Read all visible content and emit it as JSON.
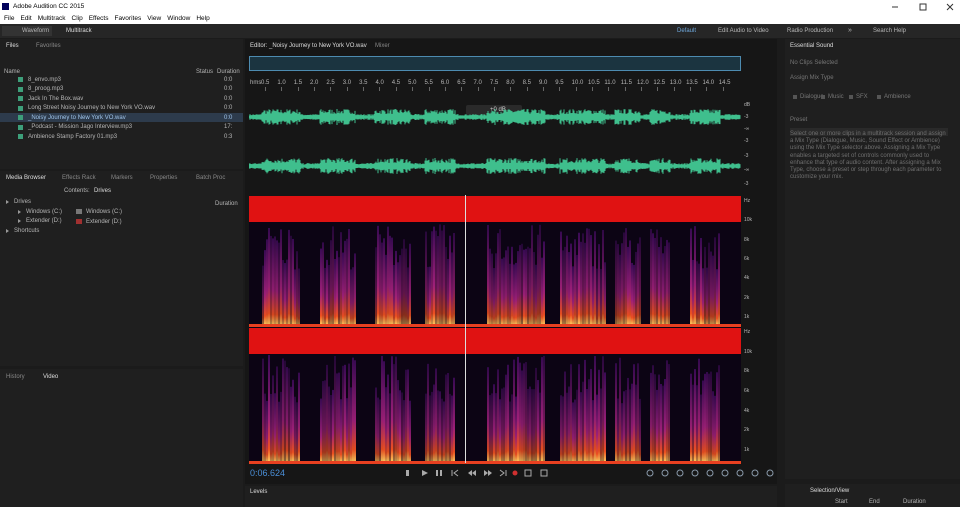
{
  "title_bar": {
    "title": "Adobe Audition CC 2015"
  },
  "menu": [
    "File",
    "Edit",
    "Multitrack",
    "Clip",
    "Effects",
    "Favorites",
    "View",
    "Window",
    "Help"
  ],
  "toolbar": {
    "waveform": "Waveform",
    "multitrack": "Multitrack",
    "workspaces": [
      "Default",
      "Edit Audio to Video",
      "Radio Production"
    ],
    "more": "»",
    "search": "Search Help"
  },
  "files_panel": {
    "tabs": [
      "Files",
      "Favorites"
    ],
    "columns": [
      "Name",
      "Status",
      "Duration"
    ],
    "rows": [
      {
        "name": "8_envo.mp3",
        "duration": "0:0"
      },
      {
        "name": "8_proog.mp3",
        "duration": "0:0"
      },
      {
        "name": "Jack In The Box.wav",
        "duration": "0:0"
      },
      {
        "name": "Long Street Noisy Journey to New York VO.wav",
        "duration": "0:0"
      },
      {
        "name": "_Noisy Journey to New York VO.wav",
        "duration": "0:0"
      },
      {
        "name": "_Podcast - Mission Jago Interview.mp3",
        "duration": "17:"
      },
      {
        "name": "Ambience Stamp Factory 01.mp3",
        "duration": "0:3"
      }
    ]
  },
  "media_browser": {
    "tabs": [
      "Media Browser",
      "Effects Rack",
      "Markers",
      "Properties",
      "Batch Proc"
    ],
    "contents_label": "Contents:",
    "contents_value": "Drives",
    "duration": "Duration",
    "tree": [
      "Drives",
      "Windows (C:)",
      "Extender (D:)",
      "Shortcuts"
    ],
    "drives": [
      "Windows (C:)",
      "Extender (D:)"
    ]
  },
  "history_panel": {
    "tabs": [
      "History",
      "Video"
    ]
  },
  "editor": {
    "tabs": [
      "Editor: _Noisy Journey to New York VO.wav",
      "Mixer"
    ],
    "ruler": [
      "hms",
      "0.5",
      "1.0",
      "1.5",
      "2.0",
      "2.5",
      "3.0",
      "3.5",
      "4.0",
      "4.5",
      "5.0",
      "5.5",
      "6.0",
      "6.5",
      "7.0",
      "7.5",
      "8.0",
      "8.5",
      "9.0",
      "9.5",
      "10.0",
      "10.5",
      "11.0",
      "11.5",
      "12.0",
      "12.5",
      "13.0",
      "13.5",
      "14.0",
      "14.5"
    ],
    "level_marker": "+0 dB",
    "waveform_db": [
      [
        "dB",
        "-3",
        "-∞",
        "-3"
      ],
      [
        "-3",
        "-∞",
        "-3"
      ]
    ],
    "spectral_hz": [
      [
        "Hz",
        "10k",
        "8k",
        "6k",
        "4k",
        "2k",
        "1k"
      ],
      [
        "Hz",
        "10k",
        "8k",
        "6k",
        "4k",
        "2k",
        "1k"
      ]
    ],
    "time": "0:06.624"
  },
  "levels": "Levels",
  "essential_sound": {
    "title": "Essential Sound",
    "no_clip": "No Clips Selected",
    "assign": "Assign Mix Type",
    "types": [
      "Dialogue",
      "Music",
      "SFX",
      "Ambience"
    ],
    "preset": "Preset",
    "description": "Select one or more clips in a multitrack session and assign a Mix Type (Dialogue, Music, Sound Effect or Ambience) using the Mix Type selector above. Assigning a Mix Type enables a targeted set of controls commonly used to enhance that type of audio content. After assigning a Mix Type, choose a preset or step through each parameter to customize your mix."
  },
  "selection_view": {
    "title": "Selection/View",
    "columns": [
      "Start",
      "End",
      "Duration"
    ]
  }
}
